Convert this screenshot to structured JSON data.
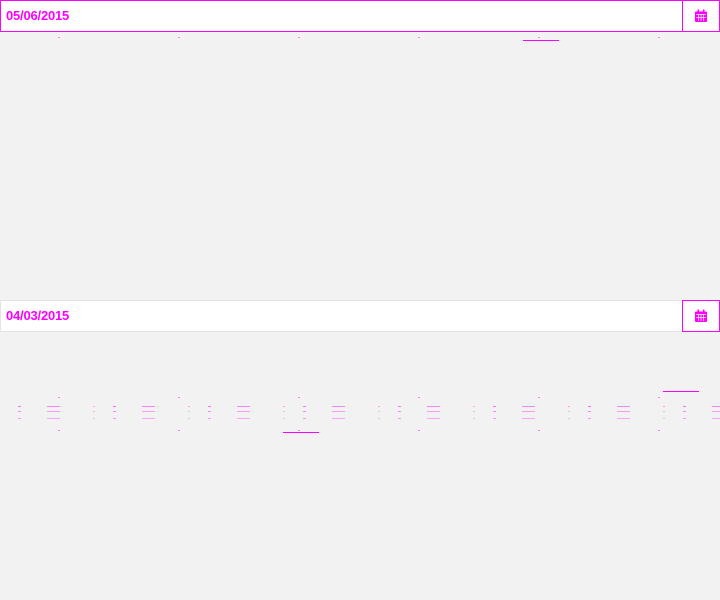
{
  "date_pickers": [
    {
      "value": "05/06/2015",
      "button_icon": "calendar-icon",
      "state": "focused"
    },
    {
      "value": "04/03/2015",
      "button_icon": "calendar-icon",
      "state": "idle"
    }
  ],
  "colors": {
    "accent": "#ff00ff",
    "background": "#f2f2f2",
    "field_background": "#ffffff",
    "field_border": "#e4e4e4"
  }
}
